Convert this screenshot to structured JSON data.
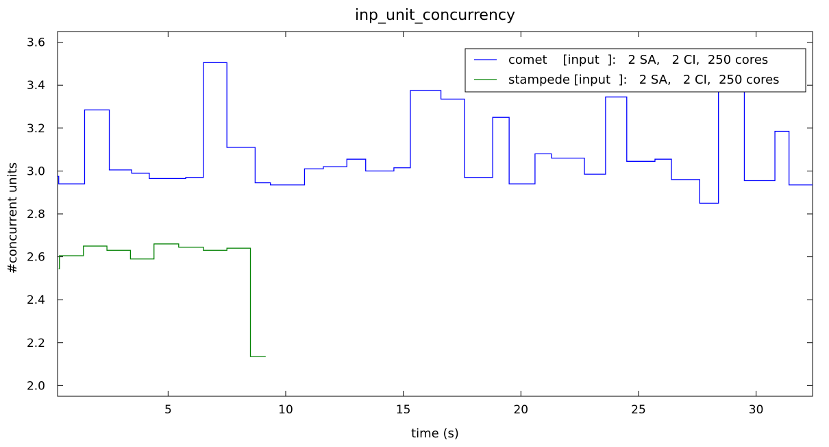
{
  "chart_data": {
    "type": "line",
    "title": "inp_unit_concurrency",
    "xlabel": "time (s)",
    "ylabel": "#concurrent units",
    "xlim": [
      0.3,
      32.4
    ],
    "ylim": [
      1.95,
      3.65
    ],
    "xticks": [
      5,
      10,
      15,
      20,
      25,
      30
    ],
    "yticks": [
      "2.0",
      "2.2",
      "2.4",
      "2.6",
      "2.8",
      "3.0",
      "3.2",
      "3.4",
      "3.6"
    ],
    "grid": false,
    "legend_position": "top-right",
    "series": [
      {
        "name": "comet    [input  ]:   2 SA,   2 CI,  250 cores",
        "color": "#0000ff",
        "step": "post",
        "x": [
          0.3,
          0.35,
          1.45,
          2.5,
          3.45,
          4.2,
          5.75,
          6.5,
          7.5,
          8.7,
          9.35,
          10.8,
          11.6,
          12.6,
          13.4,
          14.6,
          15.3,
          16.6,
          17.6,
          18.8,
          19.5,
          20.6,
          21.3,
          22.7,
          23.6,
          24.5,
          25.7,
          26.4,
          27.6,
          28.4,
          29.5,
          30.8,
          31.4,
          32.4
        ],
        "y": [
          2.975,
          2.94,
          3.285,
          3.005,
          2.99,
          2.965,
          2.97,
          3.505,
          3.11,
          2.945,
          2.935,
          3.01,
          3.02,
          3.055,
          3.0,
          3.015,
          3.375,
          3.335,
          2.97,
          3.25,
          2.94,
          3.08,
          3.06,
          2.985,
          3.345,
          3.045,
          3.055,
          2.96,
          2.85,
          3.52,
          2.955,
          3.185,
          2.935,
          2.935
        ]
      },
      {
        "name": "stampede [input  ]:   2 SA,   2 CI,  250 cores",
        "color": "#008000",
        "step": "post",
        "x": [
          0.35,
          0.38,
          1.4,
          2.4,
          3.4,
          4.4,
          5.45,
          6.5,
          7.5,
          8.5,
          9.15
        ],
        "y": [
          2.545,
          2.605,
          2.65,
          2.63,
          2.59,
          2.66,
          2.645,
          2.63,
          2.64,
          2.135,
          2.135
        ]
      }
    ]
  }
}
